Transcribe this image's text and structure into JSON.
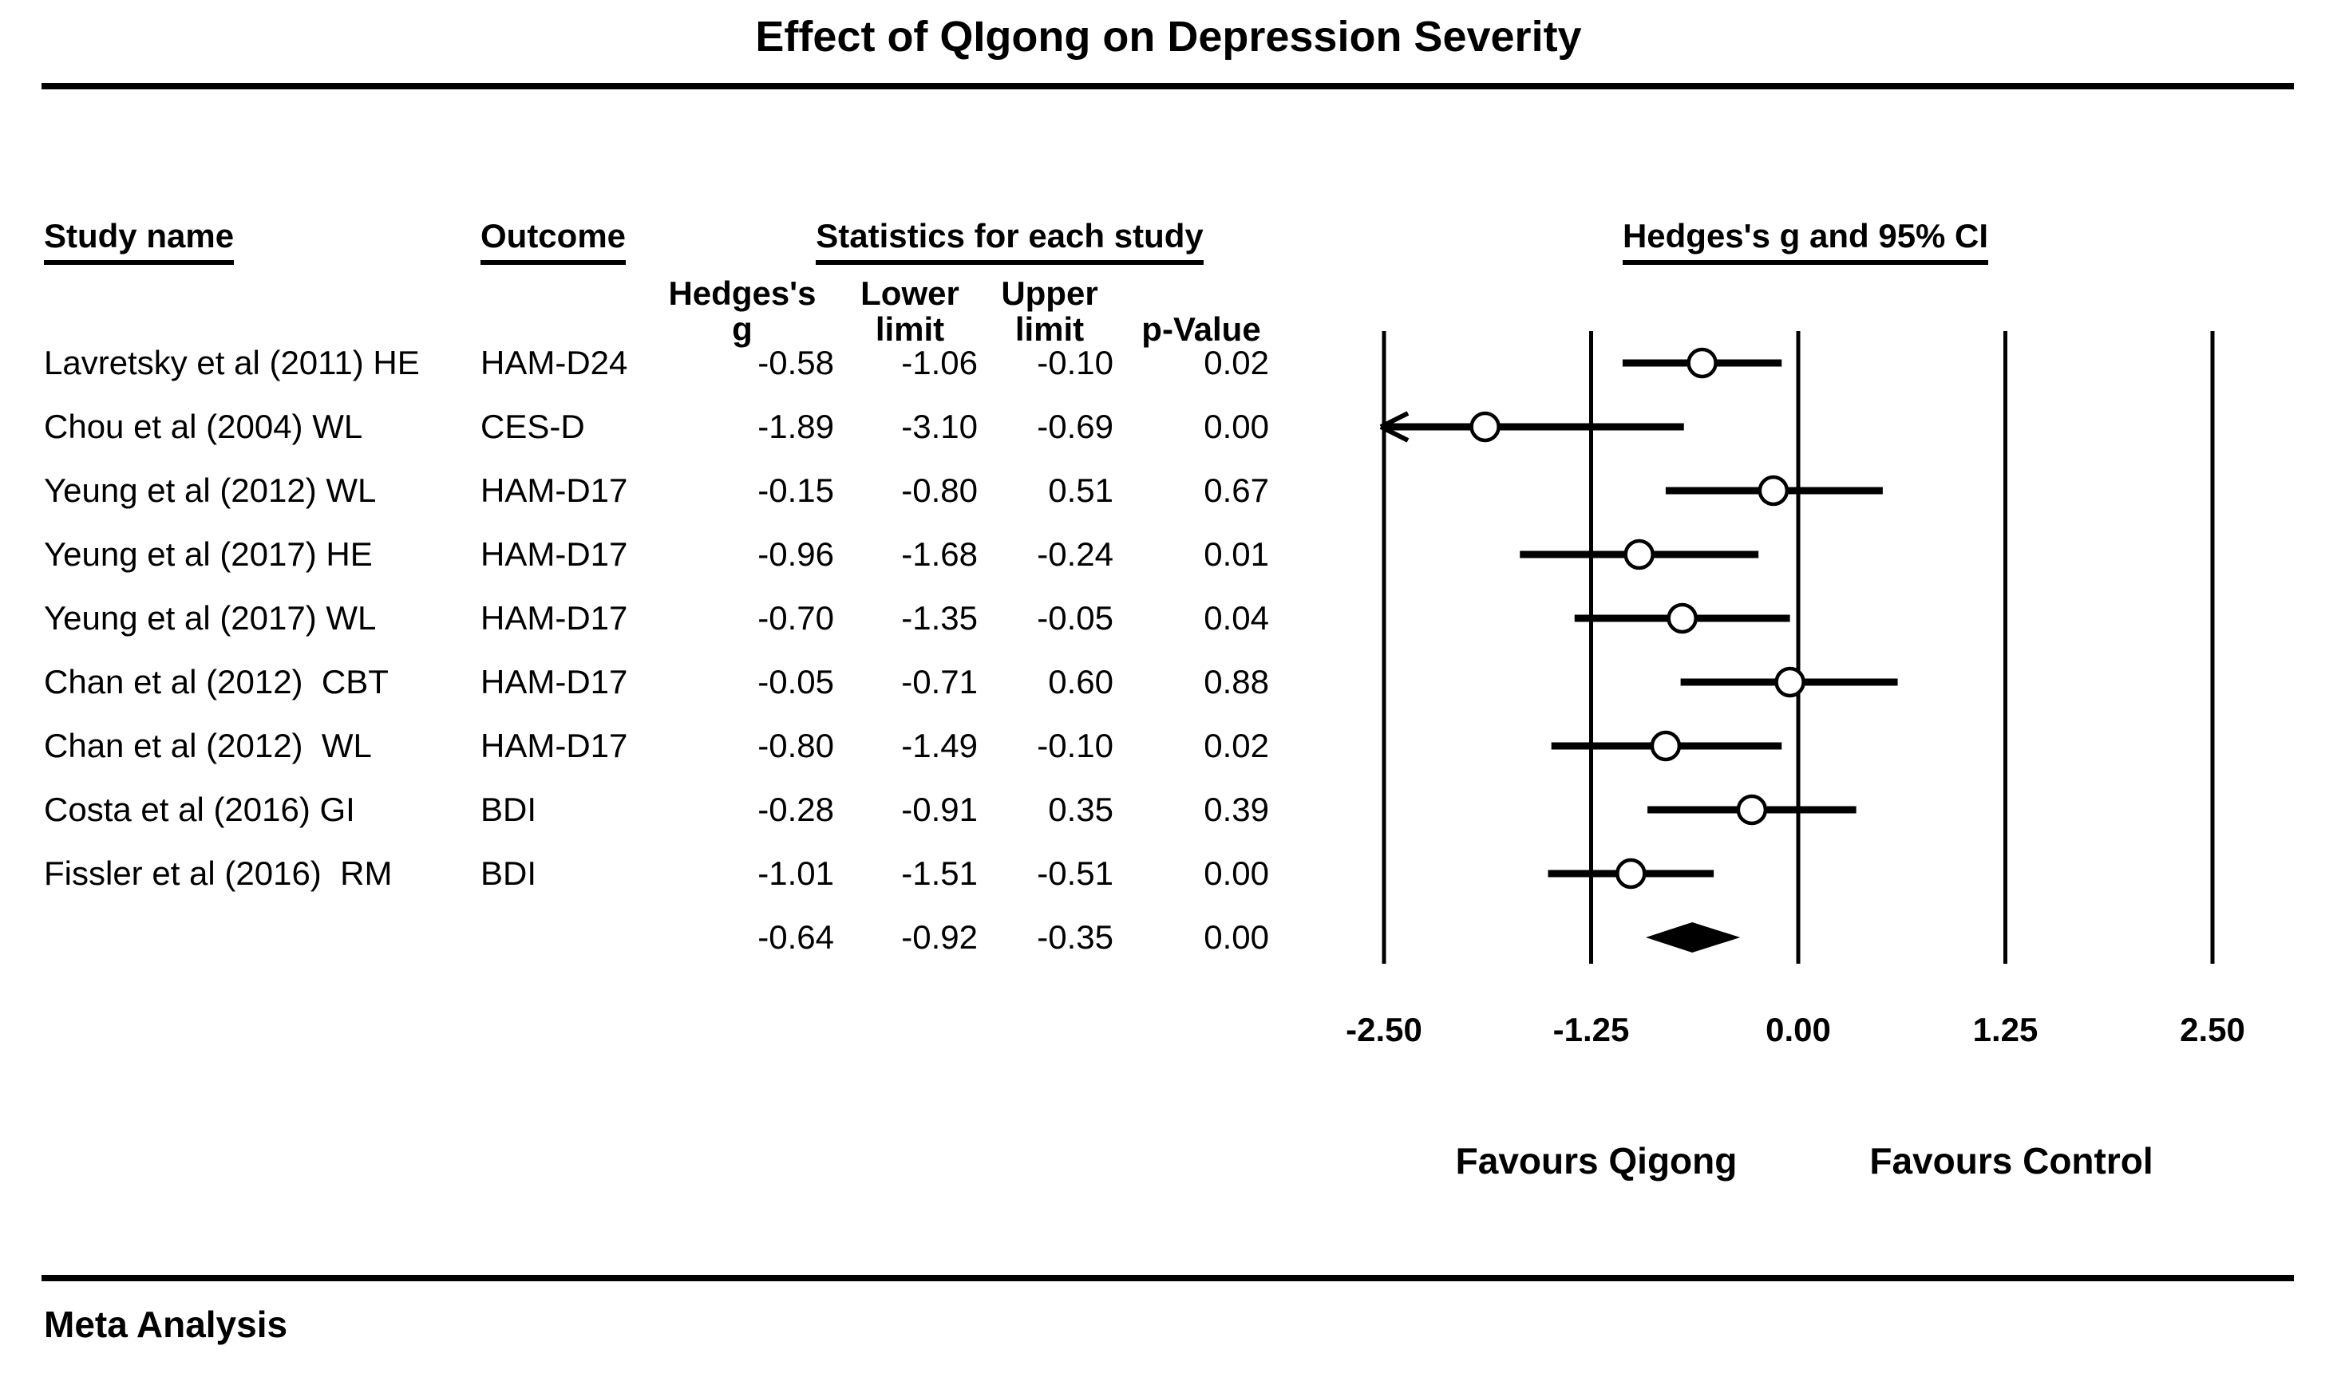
{
  "title": "Effect of QIgong on Depression Severity",
  "meta_label": "Meta Analysis",
  "table": {
    "study_col_header": "Study name",
    "outcome_col_header": "Outcome",
    "stats_group_header": "Statistics for each study",
    "effect_group_header": "Hedges's g and 95% CI",
    "stat_cols": [
      {
        "line1": "Hedges's",
        "line2": "g"
      },
      {
        "line1": "Lower",
        "line2": "limit"
      },
      {
        "line1": "Upper",
        "line2": "limit"
      },
      {
        "line1": "",
        "line2": "p-Value"
      }
    ]
  },
  "chart_data": {
    "type": "forest",
    "title": "Effect of QIgong on Depression Severity",
    "effect_measure": "Hedges's g and 95% CI",
    "axis": {
      "xlim": [
        -2.5,
        2.5
      ],
      "tick_values": [
        -2.5,
        -1.25,
        0,
        1.25,
        2.5
      ],
      "tick_labels": [
        "-2.50",
        "-1.25",
        "0.00",
        "1.25",
        "2.50"
      ],
      "grid": "vertical-lines-at-ticks"
    },
    "xlabel_left": "Favours Qigong",
    "xlabel_right": "Favours Control",
    "studies": [
      {
        "study": "Lavretsky et al (2011) HE",
        "outcome": "HAM-D24",
        "g": "-0.58",
        "lower": "-1.06",
        "upper": "-0.10",
        "p": "0.02"
      },
      {
        "study": "Chou et al (2004) WL",
        "outcome": "CES-D",
        "g": "-1.89",
        "lower": "-3.10",
        "upper": "-0.69",
        "p": "0.00"
      },
      {
        "study": "Yeung et al (2012) WL",
        "outcome": "HAM-D17",
        "g": "-0.15",
        "lower": "-0.80",
        "upper": "0.51",
        "p": "0.67"
      },
      {
        "study": "Yeung et al (2017) HE",
        "outcome": "HAM-D17",
        "g": "-0.96",
        "lower": "-1.68",
        "upper": "-0.24",
        "p": "0.01"
      },
      {
        "study": "Yeung et al (2017) WL",
        "outcome": "HAM-D17",
        "g": "-0.70",
        "lower": "-1.35",
        "upper": "-0.05",
        "p": "0.04"
      },
      {
        "study": "Chan et al (2012)  CBT",
        "outcome": "HAM-D17",
        "g": "-0.05",
        "lower": "-0.71",
        "upper": "0.60",
        "p": "0.88"
      },
      {
        "study": "Chan et al (2012)  WL",
        "outcome": "HAM-D17",
        "g": "-0.80",
        "lower": "-1.49",
        "upper": "-0.10",
        "p": "0.02"
      },
      {
        "study": "Costa et al (2016) GI",
        "outcome": "BDI",
        "g": "-0.28",
        "lower": "-0.91",
        "upper": "0.35",
        "p": "0.39"
      },
      {
        "study": "Fissler et al (2016)  RM",
        "outcome": "BDI",
        "g": "-1.01",
        "lower": "-1.51",
        "upper": "-0.51",
        "p": "0.00"
      }
    ],
    "summary": {
      "g": "-0.64",
      "lower": "-0.92",
      "upper": "-0.35",
      "p": "0.00"
    },
    "colors": {
      "foreground": "#000000",
      "background": "#ffffff",
      "marker_fill": "#ffffff"
    }
  }
}
